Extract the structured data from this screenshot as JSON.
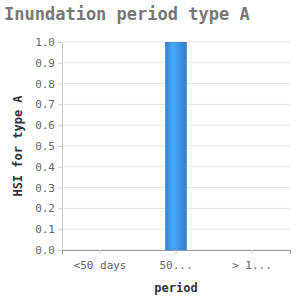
{
  "chart_data": {
    "type": "bar",
    "title": "Inundation period type A",
    "x_label": "period",
    "y_label": "HSI for type A",
    "categories": [
      "<50 days",
      "50...",
      "> 1..."
    ],
    "values": [
      0,
      1.0,
      0
    ],
    "color": "#3a8ee6",
    "ylim": [
      0,
      1.0
    ],
    "yticks": [
      {
        "value": 0,
        "label": "0.0"
      },
      {
        "value": 0.1,
        "label": "0.1"
      },
      {
        "value": 0.2,
        "label": "0.2"
      },
      {
        "value": 0.3,
        "label": "0.3"
      },
      {
        "value": 0.4,
        "label": "0.4"
      },
      {
        "value": 0.5,
        "label": "0.5"
      },
      {
        "value": 0.6,
        "label": "0.6"
      },
      {
        "value": 0.7,
        "label": "0.7"
      },
      {
        "value": 0.8,
        "label": "0.8"
      },
      {
        "value": 0.9,
        "label": "0.9"
      },
      {
        "value": 1.0,
        "label": "1.0"
      }
    ],
    "grid": true
  }
}
